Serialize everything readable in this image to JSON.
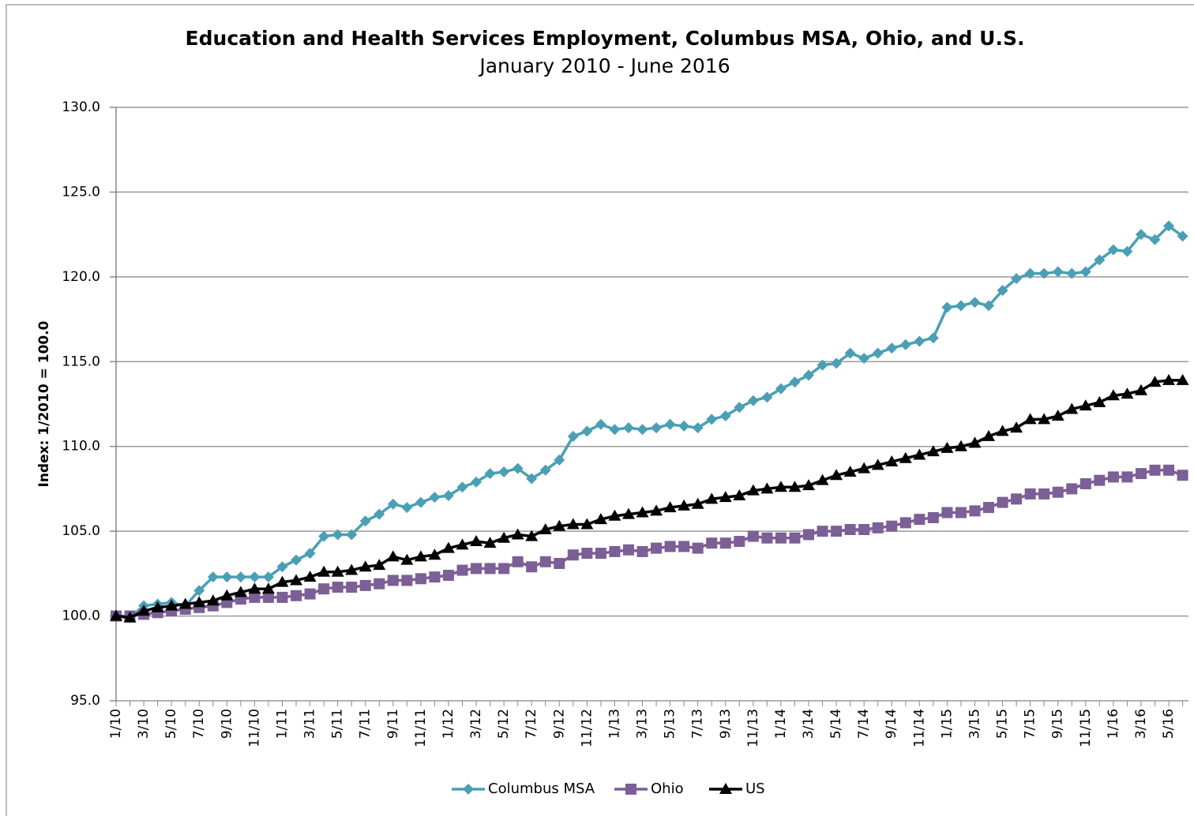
{
  "chart_data": {
    "type": "line",
    "title": "Education and Health Services Employment, Columbus MSA, Ohio, and U.S.",
    "subtitle": "January 2010 - June 2016",
    "y_label": "Index: 1/2010 = 100.0",
    "categories": [
      "1/10",
      null,
      "3/10",
      null,
      "5/10",
      null,
      "7/10",
      null,
      "9/10",
      null,
      "11/10",
      null,
      "1/11",
      null,
      "3/11",
      null,
      "5/11",
      null,
      "7/11",
      null,
      "9/11",
      null,
      "11/11",
      null,
      "1/12",
      null,
      "3/12",
      null,
      "5/12",
      null,
      "7/12",
      null,
      "9/12",
      null,
      "11/12",
      null,
      "1/13",
      null,
      "3/13",
      null,
      "5/13",
      null,
      "7/13",
      null,
      "9/13",
      null,
      "11/13",
      null,
      "1/14",
      null,
      "3/14",
      null,
      "5/14",
      null,
      "7/14",
      null,
      "9/14",
      null,
      "11/14",
      null,
      "1/15",
      null,
      "3/15",
      null,
      "5/15",
      null,
      "7/15",
      null,
      "9/15",
      null,
      "11/15",
      null,
      "1/16",
      null,
      "3/16",
      null,
      "5/16",
      null
    ],
    "series": [
      {
        "name": "Columbus MSA",
        "color": "#4a9fb5",
        "marker": "diamond",
        "values": [
          100.0,
          99.9,
          100.6,
          100.7,
          100.8,
          100.6,
          101.5,
          102.3,
          102.3,
          102.3,
          102.3,
          102.3,
          102.9,
          103.3,
          103.7,
          104.7,
          104.8,
          104.8,
          105.6,
          106.0,
          106.6,
          106.4,
          106.7,
          107.0,
          107.1,
          107.6,
          107.9,
          108.4,
          108.5,
          108.7,
          108.1,
          108.6,
          109.2,
          110.6,
          110.9,
          111.3,
          111.0,
          111.1,
          111.0,
          111.1,
          111.3,
          111.2,
          111.1,
          111.6,
          111.8,
          112.3,
          112.7,
          112.9,
          113.4,
          113.8,
          114.2,
          114.8,
          114.9,
          115.5,
          115.2,
          115.5,
          115.8,
          116.0,
          116.2,
          116.4,
          118.2,
          118.3,
          118.5,
          118.3,
          119.2,
          119.9,
          120.2,
          120.2,
          120.3,
          120.2,
          120.3,
          121.0,
          121.6,
          121.5,
          122.5,
          122.2,
          123.0,
          122.4
        ]
      },
      {
        "name": "Ohio",
        "color": "#7b5f96",
        "marker": "square",
        "values": [
          100.0,
          100.0,
          100.1,
          100.2,
          100.3,
          100.4,
          100.5,
          100.6,
          100.8,
          101.0,
          101.1,
          101.1,
          101.1,
          101.2,
          101.3,
          101.6,
          101.7,
          101.7,
          101.8,
          101.9,
          102.1,
          102.1,
          102.2,
          102.3,
          102.4,
          102.7,
          102.8,
          102.8,
          102.8,
          103.2,
          102.9,
          103.2,
          103.1,
          103.6,
          103.7,
          103.7,
          103.8,
          103.9,
          103.8,
          104.0,
          104.1,
          104.1,
          104.0,
          104.3,
          104.3,
          104.4,
          104.7,
          104.6,
          104.6,
          104.6,
          104.8,
          105.0,
          105.0,
          105.1,
          105.1,
          105.2,
          105.3,
          105.5,
          105.7,
          105.8,
          106.1,
          106.1,
          106.2,
          106.4,
          106.7,
          106.9,
          107.2,
          107.2,
          107.3,
          107.5,
          107.8,
          108.0,
          108.2,
          108.2,
          108.4,
          108.6,
          108.6,
          108.3
        ]
      },
      {
        "name": "US",
        "color": "#000000",
        "marker": "triangle",
        "values": [
          100.0,
          99.9,
          100.3,
          100.5,
          100.6,
          100.7,
          100.8,
          100.9,
          101.2,
          101.4,
          101.6,
          101.6,
          102.0,
          102.1,
          102.3,
          102.6,
          102.6,
          102.7,
          102.9,
          103.0,
          103.5,
          103.3,
          103.5,
          103.6,
          104.0,
          104.2,
          104.4,
          104.3,
          104.6,
          104.8,
          104.7,
          105.1,
          105.3,
          105.4,
          105.4,
          105.7,
          105.9,
          106.0,
          106.1,
          106.2,
          106.4,
          106.5,
          106.6,
          106.9,
          107.0,
          107.1,
          107.4,
          107.5,
          107.6,
          107.6,
          107.7,
          108.0,
          108.3,
          108.5,
          108.7,
          108.9,
          109.1,
          109.3,
          109.5,
          109.7,
          109.9,
          110.0,
          110.2,
          110.6,
          110.9,
          111.1,
          111.6,
          111.6,
          111.8,
          112.2,
          112.4,
          112.6,
          113.0,
          113.1,
          113.3,
          113.8,
          113.9,
          113.9
        ]
      }
    ],
    "ylim": [
      95,
      130
    ],
    "yticks": [
      {
        "value": 95,
        "label": "95.0"
      },
      {
        "value": 100,
        "label": "100.0"
      },
      {
        "value": 105,
        "label": "105.0"
      },
      {
        "value": 110,
        "label": "110.0"
      },
      {
        "value": 115,
        "label": "115.0"
      },
      {
        "value": 120,
        "label": "120.0"
      },
      {
        "value": 125,
        "label": "125.0"
      },
      {
        "value": 130,
        "label": "130.0"
      }
    ],
    "grid": true,
    "legend": "bottom"
  }
}
